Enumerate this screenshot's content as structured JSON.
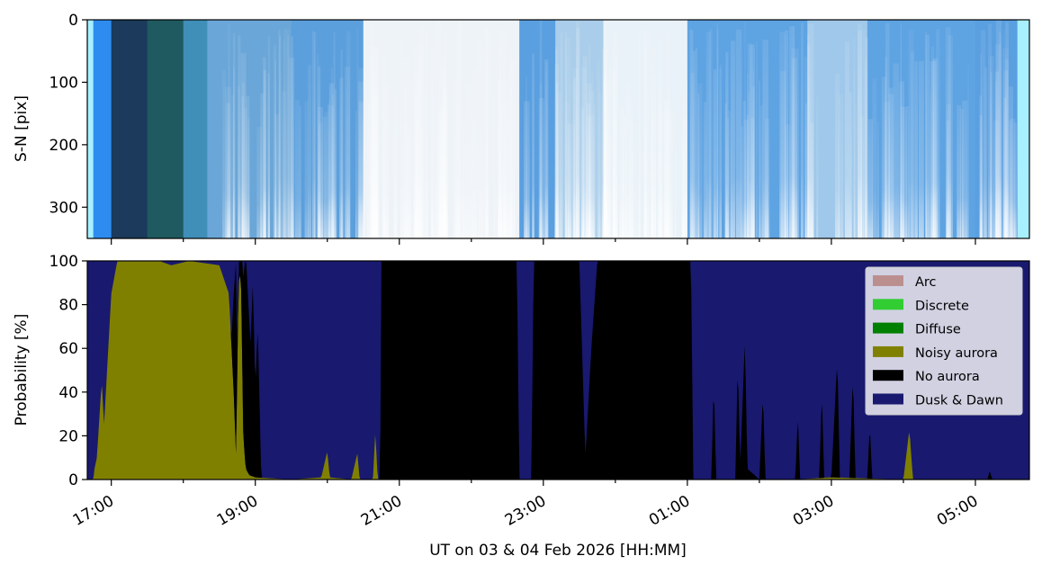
{
  "chart_data": [
    {
      "type": "heatmap",
      "ylabel": "S-N [pix]",
      "ylim": [
        350,
        0
      ],
      "yticks": [
        0,
        100,
        200,
        300
      ],
      "x_time_range": [
        "16:40",
        "05:45"
      ],
      "bands": [
        {
          "start": "16:40",
          "end": "16:45",
          "color": "#a8f0ff"
        },
        {
          "start": "16:45",
          "end": "17:00",
          "color": "#2e8cf0"
        },
        {
          "start": "17:00",
          "end": "17:30",
          "color": "#1b3a5c"
        },
        {
          "start": "17:30",
          "end": "18:00",
          "color": "#1f5a60"
        },
        {
          "start": "18:00",
          "end": "18:20",
          "color": "#3f8fb8"
        },
        {
          "start": "18:20",
          "end": "19:30",
          "color": "#6aa6d8"
        },
        {
          "start": "19:30",
          "end": "20:30",
          "color": "#5b9fdc"
        },
        {
          "start": "20:30",
          "end": "22:40",
          "color": "#eef3f8"
        },
        {
          "start": "22:40",
          "end": "23:10",
          "color": "#5a9fe0"
        },
        {
          "start": "23:10",
          "end": "23:50",
          "color": "#a9cdea"
        },
        {
          "start": "23:50",
          "end": "01:00",
          "color": "#e9f2f8"
        },
        {
          "start": "01:00",
          "end": "02:40",
          "color": "#5ea3e2"
        },
        {
          "start": "02:40",
          "end": "03:30",
          "color": "#9fc8ea"
        },
        {
          "start": "03:30",
          "end": "05:00",
          "color": "#5ea3e2"
        },
        {
          "start": "05:00",
          "end": "05:35",
          "color": "#5a9fe0"
        },
        {
          "start": "05:35",
          "end": "05:45",
          "color": "#a8f0ff"
        }
      ]
    },
    {
      "type": "area",
      "stacked": true,
      "ylabel": "Probability [%]",
      "xlabel": "UT on 03 & 04 Feb 2026 [HH:MM]",
      "ylim": [
        0,
        100
      ],
      "yticks": [
        0,
        20,
        40,
        60,
        80,
        100
      ],
      "x_time_range": [
        "16:40",
        "05:45"
      ],
      "xticks": [
        "17:00",
        "19:00",
        "21:00",
        "23:00",
        "01:00",
        "03:00",
        "05:00"
      ],
      "legend_position": "top-right",
      "series": [
        {
          "name": "Arc",
          "color": "#bc8f8f",
          "points": []
        },
        {
          "name": "Discrete",
          "color": "#32cd32",
          "points": []
        },
        {
          "name": "Diffuse",
          "color": "#008000",
          "points": []
        },
        {
          "name": "Noisy aurora",
          "color": "#808000",
          "points": [
            [
              "16:40",
              0
            ],
            [
              "16:45",
              0
            ],
            [
              "16:46",
              5
            ],
            [
              "16:48",
              10
            ],
            [
              "16:52",
              45
            ],
            [
              "16:54",
              25
            ],
            [
              "16:57",
              55
            ],
            [
              "17:00",
              85
            ],
            [
              "17:05",
              100
            ],
            [
              "17:40",
              100
            ],
            [
              "17:50",
              98
            ],
            [
              "18:05",
              100
            ],
            [
              "18:30",
              98
            ],
            [
              "18:38",
              85
            ],
            [
              "18:42",
              40
            ],
            [
              "18:44",
              10
            ],
            [
              "18:46",
              90
            ],
            [
              "18:48",
              95
            ],
            [
              "18:50",
              20
            ],
            [
              "18:52",
              5
            ],
            [
              "18:55",
              2
            ],
            [
              "19:00",
              1
            ],
            [
              "19:30",
              0
            ],
            [
              "19:55",
              1
            ],
            [
              "20:00",
              13
            ],
            [
              "20:02",
              1
            ],
            [
              "20:20",
              0
            ],
            [
              "20:25",
              12
            ],
            [
              "20:27",
              0
            ],
            [
              "20:38",
              0
            ],
            [
              "20:40",
              22
            ],
            [
              "20:42",
              0
            ],
            [
              "21:00",
              0
            ],
            [
              "23:00",
              0
            ],
            [
              "23:30",
              0
            ],
            [
              "01:00",
              0
            ],
            [
              "02:30",
              0
            ],
            [
              "03:00",
              1
            ],
            [
              "04:00",
              0
            ],
            [
              "04:05",
              23
            ],
            [
              "04:08",
              0
            ],
            [
              "05:45",
              0
            ]
          ]
        },
        {
          "name": "No aurora",
          "color": "#000000",
          "points": [
            [
              "16:40",
              0
            ],
            [
              "18:40",
              0
            ],
            [
              "18:44",
              90
            ],
            [
              "18:45",
              0
            ],
            [
              "18:52",
              100
            ],
            [
              "18:56",
              60
            ],
            [
              "18:58",
              90
            ],
            [
              "19:00",
              40
            ],
            [
              "19:02",
              70
            ],
            [
              "19:05",
              0
            ],
            [
              "20:44",
              0
            ],
            [
              "20:45",
              100
            ],
            [
              "22:38",
              100
            ],
            [
              "22:40",
              0
            ],
            [
              "22:50",
              0
            ],
            [
              "22:52",
              100
            ],
            [
              "23:30",
              100
            ],
            [
              "23:35",
              10
            ],
            [
              "23:40",
              60
            ],
            [
              "23:45",
              100
            ],
            [
              "01:03",
              100
            ],
            [
              "01:05",
              0
            ],
            [
              "01:20",
              0
            ],
            [
              "01:22",
              45
            ],
            [
              "01:24",
              0
            ],
            [
              "01:40",
              0
            ],
            [
              "01:42",
              55
            ],
            [
              "01:44",
              5
            ],
            [
              "01:48",
              65
            ],
            [
              "01:50",
              5
            ],
            [
              "02:00",
              0
            ],
            [
              "02:03",
              40
            ],
            [
              "02:05",
              0
            ],
            [
              "02:30",
              0
            ],
            [
              "02:32",
              30
            ],
            [
              "02:34",
              0
            ],
            [
              "02:50",
              0
            ],
            [
              "02:52",
              40
            ],
            [
              "02:54",
              0
            ],
            [
              "03:00",
              0
            ],
            [
              "03:05",
              55
            ],
            [
              "03:07",
              0
            ],
            [
              "03:15",
              0
            ],
            [
              "03:18",
              48
            ],
            [
              "03:20",
              0
            ],
            [
              "03:30",
              0
            ],
            [
              "03:32",
              25
            ],
            [
              "03:34",
              0
            ],
            [
              "04:00",
              0
            ],
            [
              "05:10",
              0
            ],
            [
              "05:12",
              4
            ],
            [
              "05:14",
              0
            ],
            [
              "05:45",
              0
            ]
          ]
        },
        {
          "name": "Dusk & Dawn",
          "color": "#191970",
          "points": "remainder to 100"
        }
      ]
    }
  ]
}
